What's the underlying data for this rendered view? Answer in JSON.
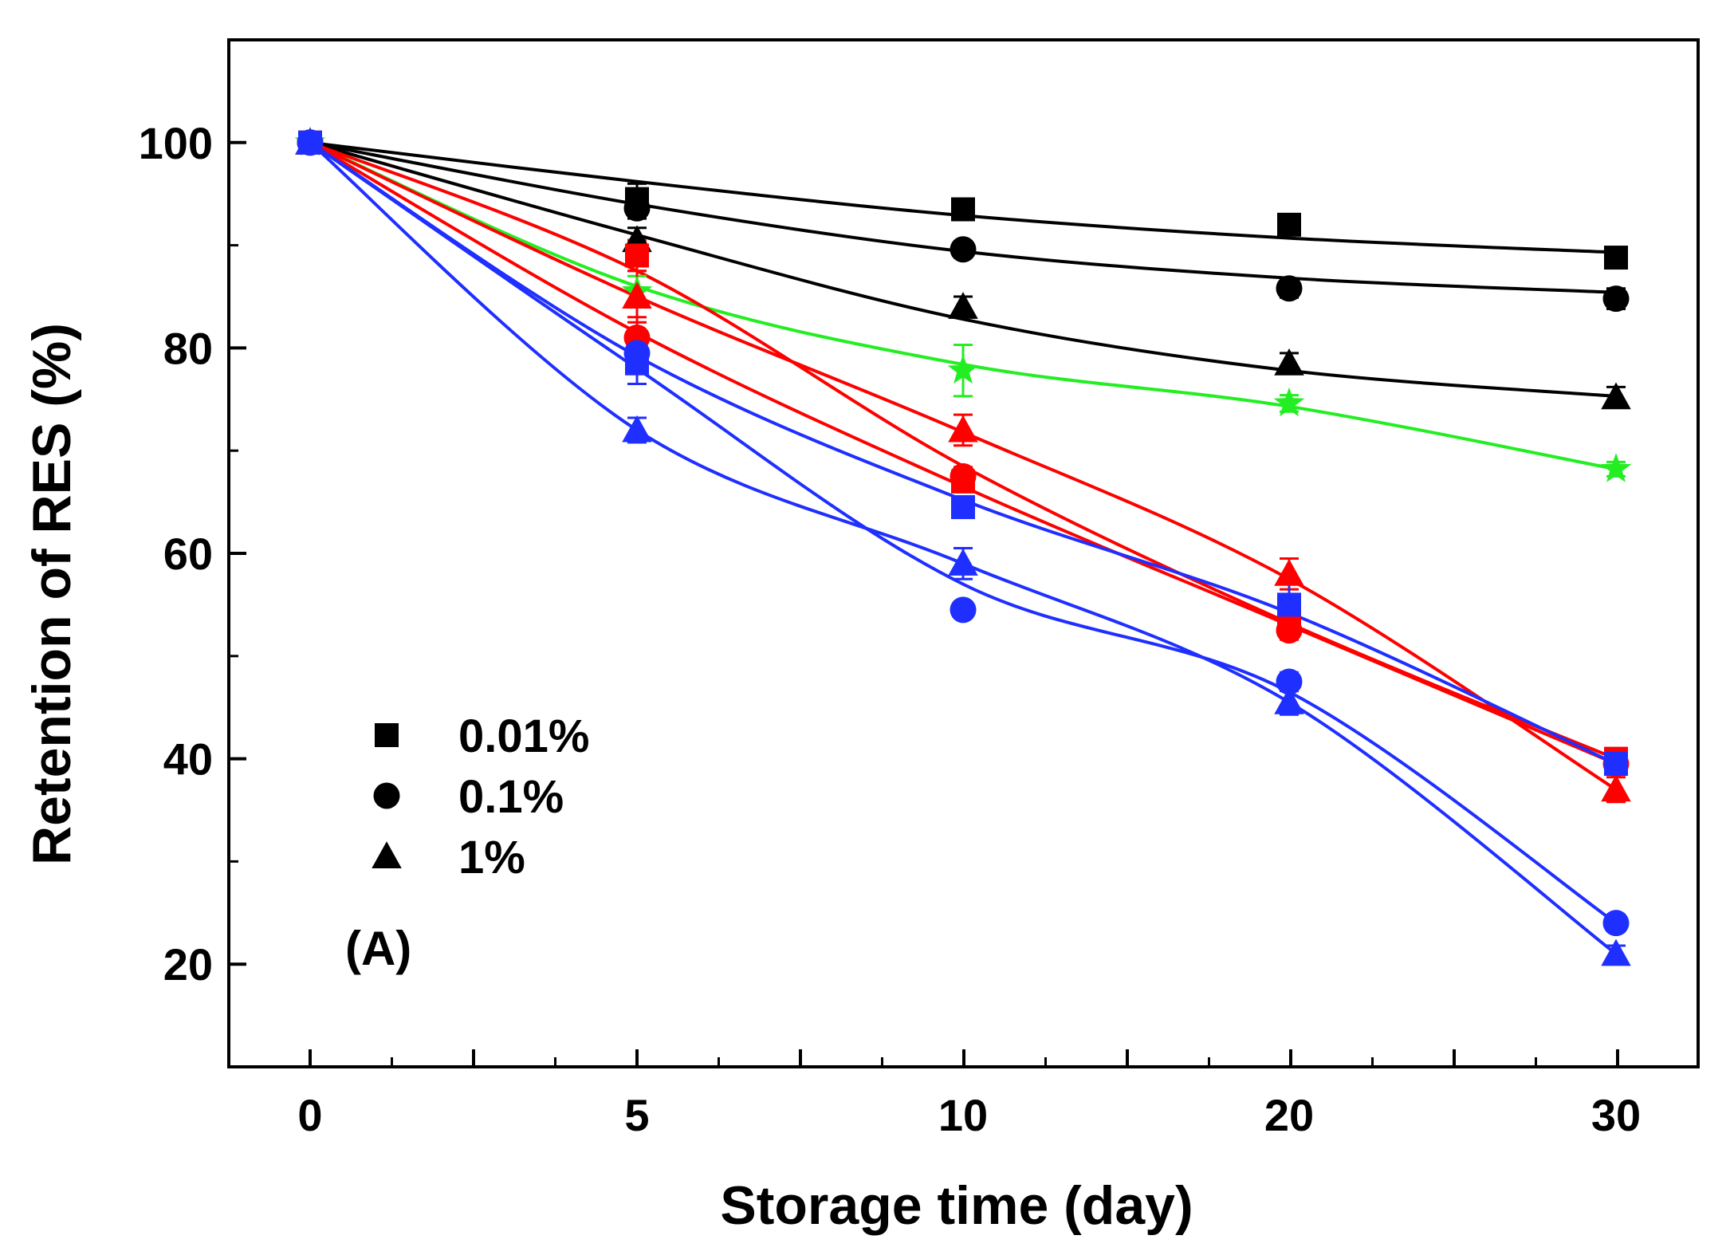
{
  "chart_data": {
    "type": "line",
    "xlabel": "Storage time (day)",
    "ylabel": "Retention of RES (%)",
    "categories": [
      "0",
      "5",
      "10",
      "20",
      "30"
    ],
    "x_tick_labels": [
      "0",
      "5",
      "10",
      "20",
      "30"
    ],
    "y_tick_labels": [
      "20",
      "40",
      "60",
      "80",
      "100"
    ],
    "ylim": [
      10,
      110
    ],
    "grid": false,
    "legend_position": "lower-left",
    "legend": [
      {
        "marker": "square",
        "label": "0.01%"
      },
      {
        "marker": "circle",
        "label": "0.1%"
      },
      {
        "marker": "triangle",
        "label": "1%"
      }
    ],
    "annotations": [
      "(A)"
    ],
    "series": [
      {
        "color": "#000000",
        "marker": "square",
        "values": [
          100,
          94.5,
          93.5,
          92.0,
          88.8
        ],
        "fit": [
          100,
          96.2,
          92.9,
          90.7,
          89.3
        ],
        "errors": [
          0.8,
          1.5,
          0.6,
          0.9,
          0.8
        ]
      },
      {
        "color": "#000000",
        "marker": "circle",
        "values": [
          100,
          93.6,
          89.6,
          85.8,
          84.8
        ],
        "fit": [
          100,
          94.0,
          89.4,
          86.8,
          85.4
        ],
        "errors": [
          0.8,
          1.0,
          0.8,
          0.9,
          1.0
        ]
      },
      {
        "color": "#000000",
        "marker": "triangle",
        "values": [
          100,
          90.5,
          84.0,
          78.5,
          75.2
        ],
        "fit": [
          100,
          91.0,
          82.8,
          77.8,
          75.3
        ],
        "errors": [
          0.8,
          1.2,
          1.0,
          1.0,
          1.0
        ]
      },
      {
        "color": "#22ee22",
        "marker": "star",
        "values": [
          100,
          85.5,
          77.8,
          74.6,
          68.2
        ],
        "fit": [
          100,
          86.0,
          78.4,
          74.3,
          68.2
        ],
        "errors": [
          0.8,
          1.5,
          2.5,
          0.8,
          0.7
        ]
      },
      {
        "color": "#ff0000",
        "marker": "square",
        "values": [
          100,
          89.0,
          67.0,
          53.5,
          40.0
        ],
        "fit": [
          100,
          87.5,
          68.5,
          53.2,
          40.0
        ],
        "errors": [
          0.8,
          1.5,
          0.9,
          1.5,
          0.8
        ]
      },
      {
        "color": "#ff0000",
        "marker": "circle",
        "values": [
          100,
          81.0,
          67.5,
          52.5,
          39.5
        ],
        "fit": [
          100,
          81.5,
          66.5,
          53.0,
          39.5
        ],
        "errors": [
          0.8,
          2.0,
          0.9,
          0.9,
          0.8
        ]
      },
      {
        "color": "#ff0000",
        "marker": "triangle",
        "values": [
          100,
          85.0,
          72.0,
          58.0,
          37.0
        ],
        "fit": [
          100,
          85.0,
          71.8,
          57.5,
          37.0
        ],
        "errors": [
          0.8,
          2.5,
          1.5,
          1.5,
          1.2
        ]
      },
      {
        "color": "#1f2fff",
        "marker": "square",
        "values": [
          100,
          78.5,
          64.5,
          55.0,
          39.5
        ],
        "fit": [
          100,
          79.2,
          65.2,
          54.2,
          39.5
        ],
        "errors": [
          0.8,
          2.0,
          0.8,
          2.0,
          0.8
        ]
      },
      {
        "color": "#1f2fff",
        "marker": "circle",
        "values": [
          100,
          79.5,
          54.5,
          47.5,
          24.0
        ],
        "fit": [
          100,
          78.0,
          57.0,
          46.5,
          24.0
        ],
        "errors": [
          0.8,
          1.5,
          0.8,
          0.9,
          0.8
        ]
      },
      {
        "color": "#1f2fff",
        "marker": "triangle",
        "values": [
          100,
          72.0,
          59.0,
          45.5,
          21.0
        ],
        "fit": [
          100,
          72.0,
          59.0,
          45.5,
          21.0
        ],
        "errors": [
          0.8,
          1.2,
          1.5,
          1.2,
          0.8
        ]
      }
    ]
  }
}
